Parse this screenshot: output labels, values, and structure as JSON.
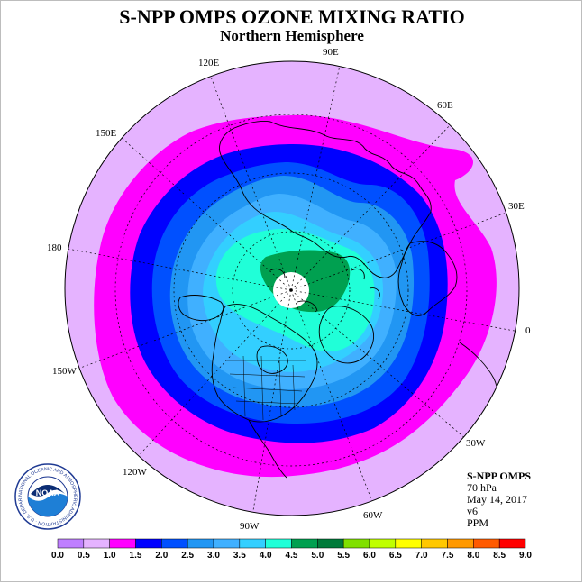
{
  "title": "S-NPP OMPS OZONE MIXING RATIO",
  "subtitle": "Northern Hemisphere",
  "info": {
    "instrument": "S-NPP OMPS",
    "level": "70 hPa",
    "date": "May 14, 2017",
    "version": "v6",
    "units": "PPM"
  },
  "logo": {
    "center_text": "NOAA",
    "ring_text": "NATIONAL OCEANIC AND ATMOSPHERIC ADMINISTRATION · U.S. DEPARTMENT OF COMMERCE"
  },
  "longitude_labels": [
    "90E",
    "60E",
    "30E",
    "0",
    "30W",
    "60W",
    "90W",
    "120W",
    "150W",
    "180",
    "150E",
    "120E"
  ],
  "colorbar": {
    "ticks": [
      "0.0",
      "0.5",
      "1.0",
      "1.5",
      "2.0",
      "2.5",
      "3.0",
      "3.5",
      "4.0",
      "4.5",
      "5.0",
      "5.5",
      "6.0",
      "6.5",
      "7.0",
      "7.5",
      "8.0",
      "8.5",
      "9.0"
    ],
    "colors": [
      "#bf7fff",
      "#e5b3ff",
      "#ff00ff",
      "#0000ff",
      "#0050ff",
      "#2196f3",
      "#40b0ff",
      "#33cfff",
      "#20ffd8",
      "#00a050",
      "#007a3a",
      "#80e000",
      "#c0ff00",
      "#ffff00",
      "#ffc800",
      "#ff9900",
      "#ff5a00",
      "#ff0000",
      "#8b4513"
    ]
  },
  "map_data": {
    "projection": "north-polar-stereographic",
    "field": "ozone mixing ratio",
    "bands_ppm": [
      {
        "range": "0.5-1.0",
        "color": "#e5b3ff"
      },
      {
        "range": "1.0-1.5",
        "color": "#ff00ff"
      },
      {
        "range": "1.5-2.0",
        "color": "#0000ff"
      },
      {
        "range": "2.0-2.5",
        "color": "#0050ff"
      },
      {
        "range": "2.5-3.0",
        "color": "#2196f3"
      },
      {
        "range": "3.0-3.5",
        "color": "#40b0ff"
      },
      {
        "range": "3.5-4.0",
        "color": "#33cfff"
      },
      {
        "range": "4.0-4.5",
        "color": "#20ffd8"
      },
      {
        "range": "4.5-5.0",
        "color": "#00a050"
      }
    ],
    "missing_data_color": "#ffffff"
  }
}
